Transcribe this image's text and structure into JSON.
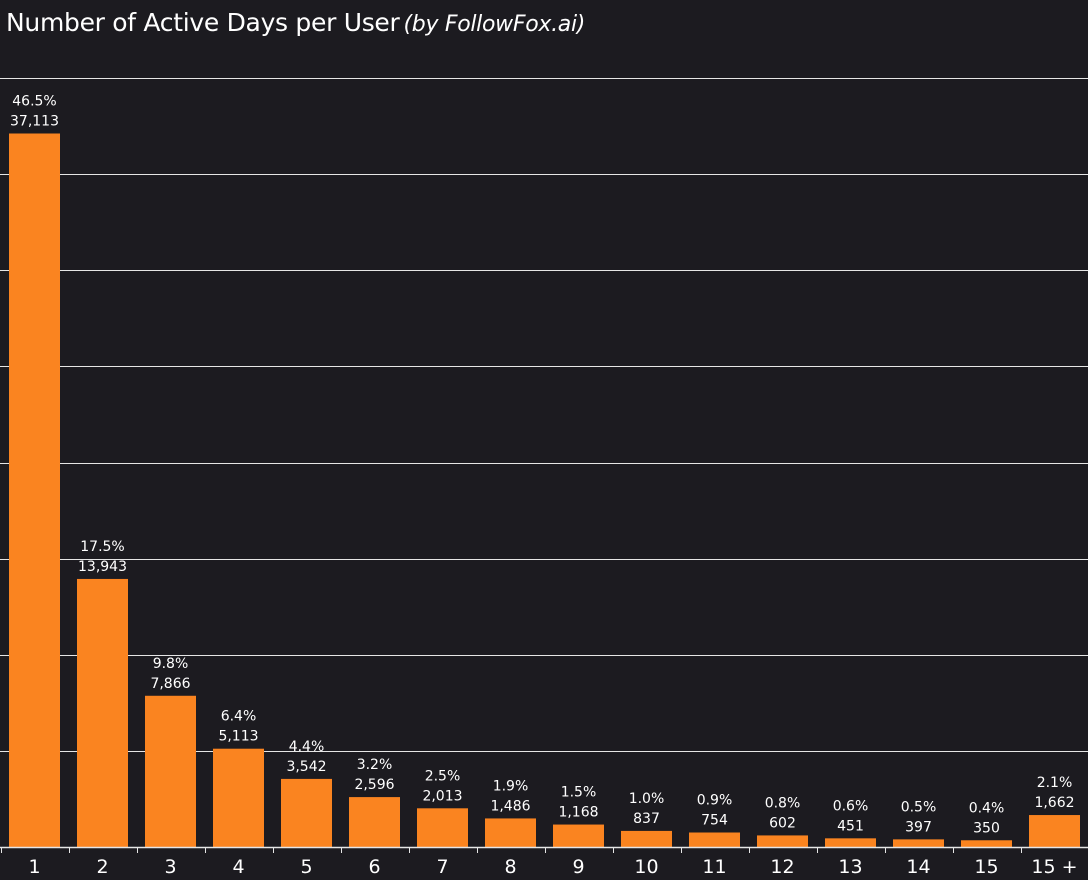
{
  "header": {
    "title": "Number of Active Days per User",
    "subtitle": "(by FollowFox.ai)"
  },
  "colors": {
    "background": "#1c1b20",
    "bar": "#fa8420",
    "grid": "#e6e6e6",
    "text": "#ffffff"
  },
  "chart_data": {
    "type": "bar",
    "title": "Number of Active Days per User",
    "subtitle": "(by FollowFox.ai)",
    "xlabel": "",
    "ylabel": "",
    "ylim": [
      0,
      40000
    ],
    "grid": true,
    "categories": [
      "1",
      "2",
      "3",
      "4",
      "5",
      "6",
      "7",
      "8",
      "9",
      "10",
      "11",
      "12",
      "13",
      "14",
      "15",
      "15 +"
    ],
    "values": [
      37113,
      13943,
      7866,
      5113,
      3542,
      2596,
      2013,
      1486,
      1168,
      837,
      754,
      602,
      451,
      397,
      350,
      1662
    ],
    "value_labels": [
      "37,113",
      "13,943",
      "7,866",
      "5,113",
      "3,542",
      "2,596",
      "2,013",
      "1,486",
      "1,168",
      "837",
      "754",
      "602",
      "451",
      "397",
      "350",
      "1,662"
    ],
    "percent_labels": [
      "46.5%",
      "17.5%",
      "9.8%",
      "6.4%",
      "4.4%",
      "3.2%",
      "2.5%",
      "1.9%",
      "1.5%",
      "1.0%",
      "0.9%",
      "0.8%",
      "0.6%",
      "0.5%",
      "0.4%",
      "2.1%"
    ]
  }
}
